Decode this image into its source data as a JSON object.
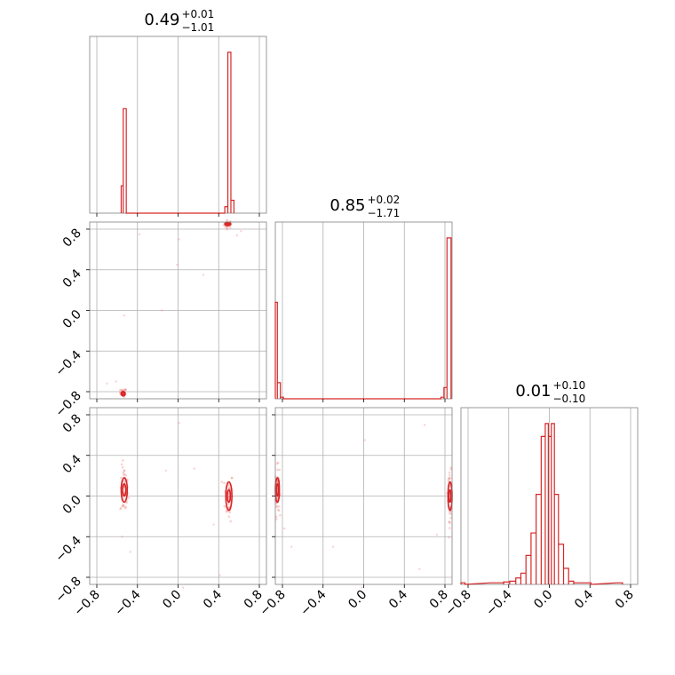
{
  "chart_data": {
    "type": "corner",
    "color": "#d62728",
    "grid": true,
    "tick_labels": [
      "−0.8",
      "−0.4",
      "0.0",
      "0.4",
      "0.8"
    ],
    "tick_values": [
      -0.8,
      -0.4,
      0.0,
      0.4,
      0.8
    ],
    "params": [
      {
        "title_main": "0.49",
        "title_plus": "+0.01",
        "title_minus": "−1.01",
        "range": [
          -0.87,
          0.87
        ]
      },
      {
        "title_main": "0.85",
        "title_plus": "+0.02",
        "title_minus": "−1.71",
        "range": [
          -0.87,
          0.87
        ]
      },
      {
        "title_main": "0.01",
        "title_plus": "+0.10",
        "title_minus": "−0.10",
        "range": [
          -0.87,
          0.87
        ]
      }
    ],
    "histograms": [
      {
        "param": 0,
        "steps": [
          {
            "x0": -0.56,
            "x1": -0.54,
            "h": 0.17
          },
          {
            "x0": -0.54,
            "x1": -0.51,
            "h": 0.65
          },
          {
            "x0": -0.51,
            "x1": 0.46,
            "h": 0.0
          },
          {
            "x0": 0.46,
            "x1": 0.49,
            "h": 0.04
          },
          {
            "x0": 0.49,
            "x1": 0.52,
            "h": 1.0
          },
          {
            "x0": 0.52,
            "x1": 0.55,
            "h": 0.08
          }
        ]
      },
      {
        "param": 1,
        "steps": [
          {
            "x0": -0.87,
            "x1": -0.85,
            "h": 0.6
          },
          {
            "x0": -0.85,
            "x1": -0.82,
            "h": 0.1
          },
          {
            "x0": -0.82,
            "x1": -0.79,
            "h": 0.01
          },
          {
            "x0": -0.79,
            "x1": 0.76,
            "h": 0.0
          },
          {
            "x0": 0.76,
            "x1": 0.79,
            "h": 0.01
          },
          {
            "x0": 0.79,
            "x1": 0.82,
            "h": 0.07
          },
          {
            "x0": 0.82,
            "x1": 0.86,
            "h": 1.0
          }
        ]
      },
      {
        "param": 2,
        "steps": [
          {
            "x0": -0.87,
            "x1": -0.83,
            "h": 0.01
          },
          {
            "x0": -0.58,
            "x1": -0.45,
            "h": 0.01
          },
          {
            "x0": -0.45,
            "x1": -0.39,
            "h": 0.015
          },
          {
            "x0": -0.39,
            "x1": -0.33,
            "h": 0.02
          },
          {
            "x0": -0.33,
            "x1": -0.28,
            "h": 0.04
          },
          {
            "x0": -0.28,
            "x1": -0.23,
            "h": 0.07
          },
          {
            "x0": -0.23,
            "x1": -0.18,
            "h": 0.18
          },
          {
            "x0": -0.18,
            "x1": -0.13,
            "h": 0.32
          },
          {
            "x0": -0.13,
            "x1": -0.08,
            "h": 0.56
          },
          {
            "x0": -0.08,
            "x1": -0.04,
            "h": 0.92
          },
          {
            "x0": -0.04,
            "x1": -0.01,
            "h": 1.0
          },
          {
            "x0": -0.01,
            "x1": 0.02,
            "h": 0.92
          },
          {
            "x0": 0.02,
            "x1": 0.05,
            "h": 1.0
          },
          {
            "x0": 0.05,
            "x1": 0.09,
            "h": 0.56
          },
          {
            "x0": 0.09,
            "x1": 0.14,
            "h": 0.25
          },
          {
            "x0": 0.14,
            "x1": 0.19,
            "h": 0.1
          },
          {
            "x0": 0.19,
            "x1": 0.24,
            "h": 0.02
          },
          {
            "x0": 0.24,
            "x1": 0.41,
            "h": 0.01
          },
          {
            "x0": 0.66,
            "x1": 0.72,
            "h": 0.01
          }
        ]
      }
    ],
    "scatter_panels": [
      {
        "x_param": 0,
        "y_param": 1,
        "clusters": [
          {
            "x": 0.49,
            "y": 0.85,
            "sx": 0.02,
            "sy": 0.02,
            "n": 30
          },
          {
            "x": -0.54,
            "y": -0.81,
            "sx": 0.015,
            "sy": 0.02,
            "n": 30
          }
        ],
        "contours": [
          {
            "x": 0.49,
            "y": 0.85,
            "rx": [
              0.015,
              0.03
            ],
            "ry": [
              0.008,
              0.016
            ]
          },
          {
            "x": -0.54,
            "y": -0.82,
            "rx": [
              0.01,
              0.02
            ],
            "ry": [
              0.012,
              0.022
            ]
          }
        ],
        "outliers": [
          [
            -0.38,
            0.75
          ],
          [
            0.01,
            0.7
          ],
          [
            0.58,
            0.74
          ],
          [
            -0.01,
            0.45
          ],
          [
            -0.53,
            -0.05
          ],
          [
            -0.61,
            -0.7
          ],
          [
            -0.7,
            -0.72
          ],
          [
            0.25,
            0.35
          ],
          [
            -0.16,
            0.0
          ],
          [
            0.62,
            0.78
          ]
        ]
      },
      {
        "x_param": 0,
        "y_param": 2,
        "clusters": [
          {
            "x": -0.53,
            "y": 0.05,
            "sx": 0.02,
            "sy": 0.12,
            "n": 60
          },
          {
            "x": 0.5,
            "y": 0.0,
            "sx": 0.02,
            "sy": 0.12,
            "n": 60
          }
        ],
        "contours": [
          {
            "x": -0.53,
            "y": 0.06,
            "rx": [
              0.015,
              0.03
            ],
            "ry": [
              0.06,
              0.12
            ]
          },
          {
            "x": 0.5,
            "y": 0.0,
            "rx": [
              0.015,
              0.03
            ],
            "ry": [
              0.06,
              0.14
            ]
          }
        ],
        "outliers": [
          [
            -0.47,
            -0.55
          ],
          [
            0.01,
            0.72
          ],
          [
            0.16,
            0.27
          ],
          [
            -0.12,
            0.25
          ],
          [
            0.35,
            -0.28
          ],
          [
            0.05,
            -0.9
          ],
          [
            0.41,
            -0.78
          ],
          [
            -0.55,
            -0.4
          ]
        ]
      },
      {
        "x_param": 1,
        "y_param": 2,
        "clusters": [
          {
            "x": -0.85,
            "y": 0.05,
            "sx": 0.01,
            "sy": 0.12,
            "n": 60
          },
          {
            "x": 0.85,
            "y": 0.0,
            "sx": 0.01,
            "sy": 0.12,
            "n": 60
          }
        ],
        "contours": [
          {
            "x": -0.85,
            "y": 0.06,
            "rx": [
              0.01,
              0.02
            ],
            "ry": [
              0.06,
              0.12
            ]
          },
          {
            "x": 0.85,
            "y": 0.0,
            "rx": [
              0.01,
              0.02
            ],
            "ry": [
              0.06,
              0.14
            ]
          }
        ],
        "outliers": [
          [
            -0.78,
            -0.32
          ],
          [
            -0.71,
            -0.5
          ],
          [
            0.01,
            0.55
          ],
          [
            -0.3,
            -0.5
          ],
          [
            0.55,
            -0.72
          ],
          [
            0.6,
            0.7
          ],
          [
            0.72,
            -0.38
          ],
          [
            -0.02,
            -0.9
          ]
        ]
      }
    ]
  }
}
